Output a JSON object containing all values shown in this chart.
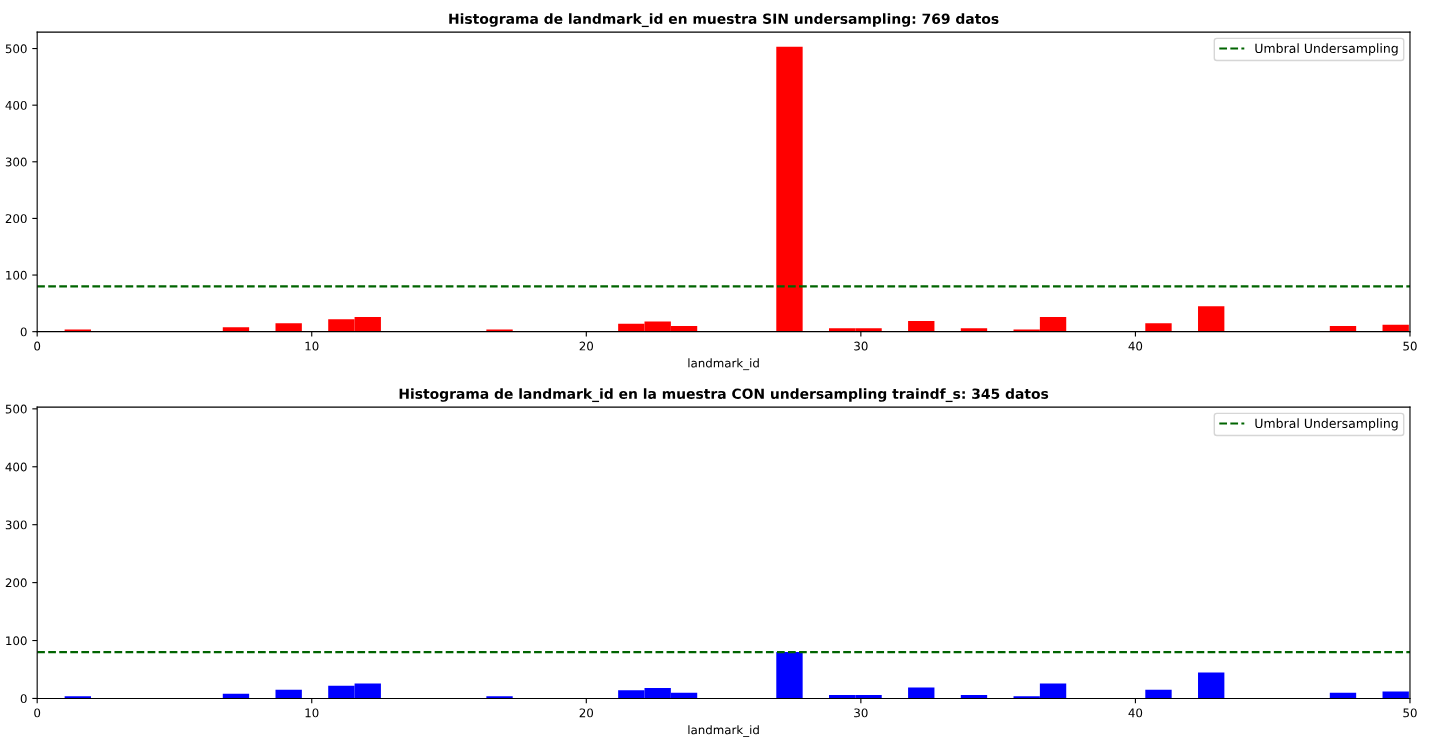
{
  "chart_data": [
    {
      "type": "histogram",
      "title": "Histograma de landmark_id en muestra SIN undersampling: 769 datos",
      "xlabel": "landmark_id",
      "color": "#ff0000",
      "bins": [
        1,
        1.96,
        2.92,
        3.88,
        4.84,
        5.8,
        6.76,
        7.72,
        8.68,
        9.64,
        10.6,
        11.56,
        12.52,
        13.48,
        14.44,
        15.4,
        16.36,
        17.32,
        18.28,
        19.24,
        20.2,
        21.16,
        22.12,
        23.08,
        24.04,
        25.0,
        25.96,
        26.92,
        27.88,
        28.84,
        29.8,
        30.76,
        31.72,
        32.68,
        33.64,
        34.6,
        35.56,
        36.52,
        37.48,
        38.44,
        39.4,
        40.36,
        41.32,
        42.28,
        43.24,
        44.2,
        45.16,
        46.12,
        47.08,
        48.04,
        49.0,
        49.96
      ],
      "values": [
        4,
        0,
        0,
        0,
        0,
        0,
        8,
        0,
        15,
        0,
        22,
        26,
        0,
        0,
        0,
        0,
        4,
        0,
        0,
        0,
        0,
        14,
        18,
        10,
        0,
        0,
        0,
        503,
        0,
        6,
        6,
        0,
        19,
        0,
        6,
        0,
        4,
        26,
        0,
        0,
        0,
        15,
        0,
        45,
        0,
        0,
        0,
        0,
        10,
        0,
        12
      ],
      "xlim": [
        0,
        50
      ],
      "xticks": [
        0,
        10,
        20,
        30,
        40,
        50
      ],
      "ylim": [
        0,
        529
      ],
      "yticks": [
        0,
        100,
        200,
        300,
        400,
        500
      ],
      "ref_lines": [
        {
          "axis": "y",
          "value": 80,
          "label": "Umbral Undersampling",
          "color": "#006400",
          "line_style": "dashed"
        }
      ],
      "legend": "top right"
    },
    {
      "type": "histogram",
      "title": "Histograma de landmark_id en la muestra CON undersampling traindf_s: 345 datos",
      "xlabel": "landmark_id",
      "color": "#0000ff",
      "bins": [
        1,
        1.96,
        2.92,
        3.88,
        4.84,
        5.8,
        6.76,
        7.72,
        8.68,
        9.64,
        10.6,
        11.56,
        12.52,
        13.48,
        14.44,
        15.4,
        16.36,
        17.32,
        18.28,
        19.24,
        20.2,
        21.16,
        22.12,
        23.08,
        24.04,
        25.0,
        25.96,
        26.92,
        27.88,
        28.84,
        29.8,
        30.76,
        31.72,
        32.68,
        33.64,
        34.6,
        35.56,
        36.52,
        37.48,
        38.44,
        39.4,
        40.36,
        41.32,
        42.28,
        43.24,
        44.2,
        45.16,
        46.12,
        47.08,
        48.04,
        49.0,
        49.96
      ],
      "values": [
        4,
        0,
        0,
        0,
        0,
        0,
        8,
        0,
        15,
        0,
        22,
        26,
        0,
        0,
        0,
        0,
        4,
        0,
        0,
        0,
        0,
        14,
        18,
        10,
        0,
        0,
        0,
        80,
        0,
        6,
        6,
        0,
        19,
        0,
        6,
        0,
        4,
        26,
        0,
        0,
        0,
        15,
        0,
        45,
        0,
        0,
        0,
        0,
        10,
        0,
        12
      ],
      "xlim": [
        0,
        50
      ],
      "xticks": [
        0,
        10,
        20,
        30,
        40,
        50
      ],
      "ylim": [
        0,
        503
      ],
      "yticks": [
        0,
        100,
        200,
        300,
        400,
        500
      ],
      "ref_lines": [
        {
          "axis": "y",
          "value": 80,
          "label": "Umbral Undersampling",
          "color": "#006400",
          "line_style": "dashed"
        }
      ],
      "legend": "top right"
    }
  ]
}
